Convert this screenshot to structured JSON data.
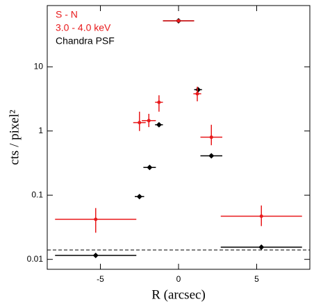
{
  "chart_data": {
    "type": "scatter",
    "xlabel": "R (arcsec)",
    "ylabel": "cts / pixel²",
    "annotations": [
      {
        "text": "S - N",
        "color": "#e8191b"
      },
      {
        "text": "3.0 - 4.0 keV",
        "color": "#e8191b"
      },
      {
        "text": "Chandra PSF",
        "color": "#000000"
      }
    ],
    "xlim": [
      -8.4,
      8.4
    ],
    "ylim": [
      0.007,
      90
    ],
    "log_y": true,
    "xticks": [
      -5,
      0,
      5
    ],
    "yticks": [
      0.01,
      0.1,
      1,
      10
    ],
    "reference_line": 0.014,
    "series": [
      {
        "color": "#000000",
        "marker": "diamond",
        "x": [
          -5.3,
          -2.5,
          -1.85,
          -1.25,
          0,
          1.25,
          2.1,
          5.3
        ],
        "values": [
          0.0115,
          0.095,
          0.27,
          1.25,
          52,
          4.4,
          0.41,
          0.0155
        ],
        "xerr": [
          2.6,
          0.3,
          0.4,
          0.25,
          1.0,
          0.25,
          0.7,
          2.6
        ]
      },
      {
        "color": "#e8191b",
        "marker": "circle",
        "x": [
          -5.3,
          -2.5,
          -1.9,
          -1.25,
          0,
          1.2,
          2.1,
          5.3
        ],
        "values": [
          0.042,
          1.35,
          1.45,
          2.8,
          52,
          3.8,
          0.8,
          0.047
        ],
        "xerr": [
          2.6,
          0.4,
          0.45,
          0.25,
          1.0,
          0.25,
          0.7,
          2.6
        ],
        "yerr_minus": [
          0.016,
          0.35,
          0.3,
          0.8,
          0,
          0.9,
          0.2,
          0.014
        ],
        "yerr_plus": [
          0.021,
          0.65,
          0.4,
          0.8,
          0,
          1.1,
          0.45,
          0.022
        ]
      }
    ]
  }
}
